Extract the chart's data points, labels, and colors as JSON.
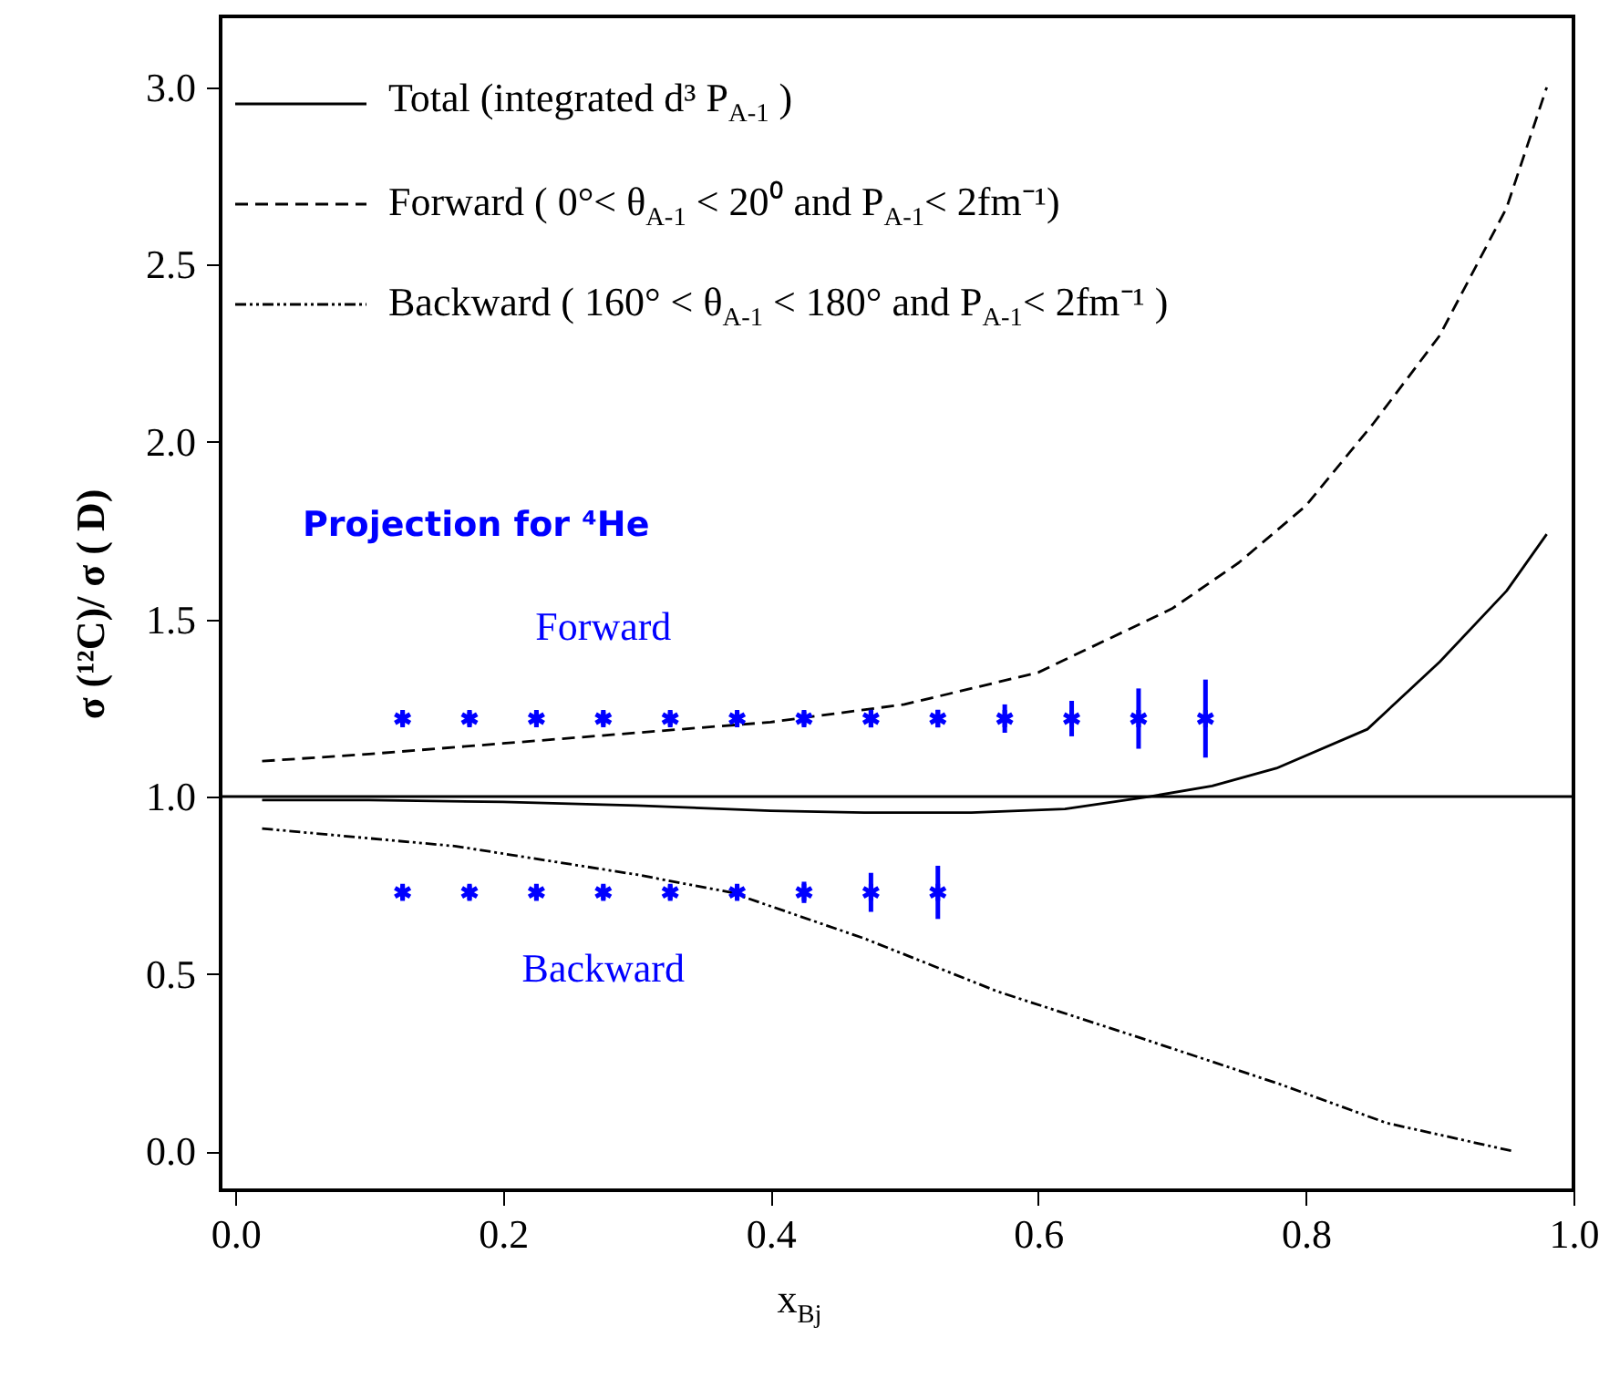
{
  "chart_data": {
    "type": "line",
    "xlabel": "x$_{Bj}$",
    "ylabel": "σ (¹²C)/ σ ( D)",
    "xlim": [
      -0.011,
      1.0
    ],
    "ylim": [
      -0.11,
      3.2
    ],
    "xticks": [
      {
        "value": 0,
        "label": "0.0"
      },
      0.2,
      0.4,
      0.6,
      0.8,
      {
        "value": 1,
        "label": "1.0"
      }
    ],
    "yticks": [
      {
        "value": 0,
        "label": "0.0"
      },
      0.5,
      {
        "value": 1,
        "label": "1.0"
      },
      1.5,
      {
        "value": 2,
        "label": "2.0"
      },
      2.5,
      {
        "value": 3,
        "label": "3.0"
      }
    ],
    "grid": false,
    "legend": "top left",
    "annotations": [
      "Projection for ⁴He"
    ],
    "ref_lines": [
      {
        "axis": "y",
        "value": 1,
        "color": "#000000"
      }
    ],
    "series": [
      {
        "name": "Total (integrated d³ P$_{A-1}$ )",
        "color": "#000000",
        "line_style": "solid",
        "x": [
          0.02,
          0.1,
          0.2,
          0.3,
          0.4,
          0.47,
          0.55,
          0.62,
          0.683,
          0.73,
          0.778,
          0.846,
          0.9,
          0.95,
          0.98
        ],
        "values": [
          0.99,
          0.99,
          0.985,
          0.975,
          0.96,
          0.955,
          0.955,
          0.965,
          1.0,
          1.03,
          1.08,
          1.19,
          1.38,
          1.58,
          1.74
        ]
      },
      {
        "name": "Forward ( 0°< θ$_{A-1}$ < 20⁰ and P$_{A-1}$< 2fm⁻¹)",
        "color": "#000000",
        "line_style": "dashed",
        "x": [
          0.02,
          0.1,
          0.2,
          0.3,
          0.4,
          0.5,
          0.6,
          0.7,
          0.75,
          0.8,
          0.85,
          0.9,
          0.95,
          0.98
        ],
        "values": [
          1.1,
          1.12,
          1.15,
          1.18,
          1.21,
          1.26,
          1.35,
          1.53,
          1.66,
          1.82,
          2.05,
          2.3,
          2.66,
          3.0
        ]
      },
      {
        "name": "Backward ( 160° < θ$_{A-1}$ < 180° and P$_{A-1}$< 2fm⁻¹ )",
        "color": "#000000",
        "line_style": "dotted",
        "x": [
          0.02,
          0.165,
          0.3,
          0.37,
          0.47,
          0.57,
          0.676,
          0.78,
          0.86,
          0.955
        ],
        "values": [
          0.91,
          0.86,
          0.78,
          0.73,
          0.6,
          0.45,
          0.32,
          0.19,
          0.08,
          0.0
        ]
      },
      {
        "name": "Forward",
        "type": "scatter",
        "color": "#0000ff",
        "marker": "cross",
        "x": [
          0.125,
          0.175,
          0.225,
          0.275,
          0.325,
          0.375,
          0.425,
          0.475,
          0.525,
          0.575,
          0.625,
          0.675,
          0.725
        ],
        "values": [
          1.22,
          1.22,
          1.22,
          1.22,
          1.22,
          1.22,
          1.22,
          1.22,
          1.22,
          1.22,
          1.22,
          1.22,
          1.22
        ],
        "errors": [
          0.02,
          0.02,
          0.02,
          0.02,
          0.02,
          0.02,
          0.02,
          0.025,
          0.025,
          0.04,
          0.05,
          0.085,
          0.11
        ]
      },
      {
        "name": "Backward",
        "type": "scatter",
        "color": "#0000ff",
        "marker": "cross",
        "x": [
          0.125,
          0.175,
          0.225,
          0.275,
          0.325,
          0.375,
          0.425,
          0.475,
          0.525
        ],
        "values": [
          0.73,
          0.73,
          0.73,
          0.73,
          0.73,
          0.73,
          0.73,
          0.73,
          0.73
        ],
        "errors": [
          0.02,
          0.02,
          0.02,
          0.02,
          0.02,
          0.02,
          0.03,
          0.055,
          0.075
        ]
      }
    ]
  }
}
